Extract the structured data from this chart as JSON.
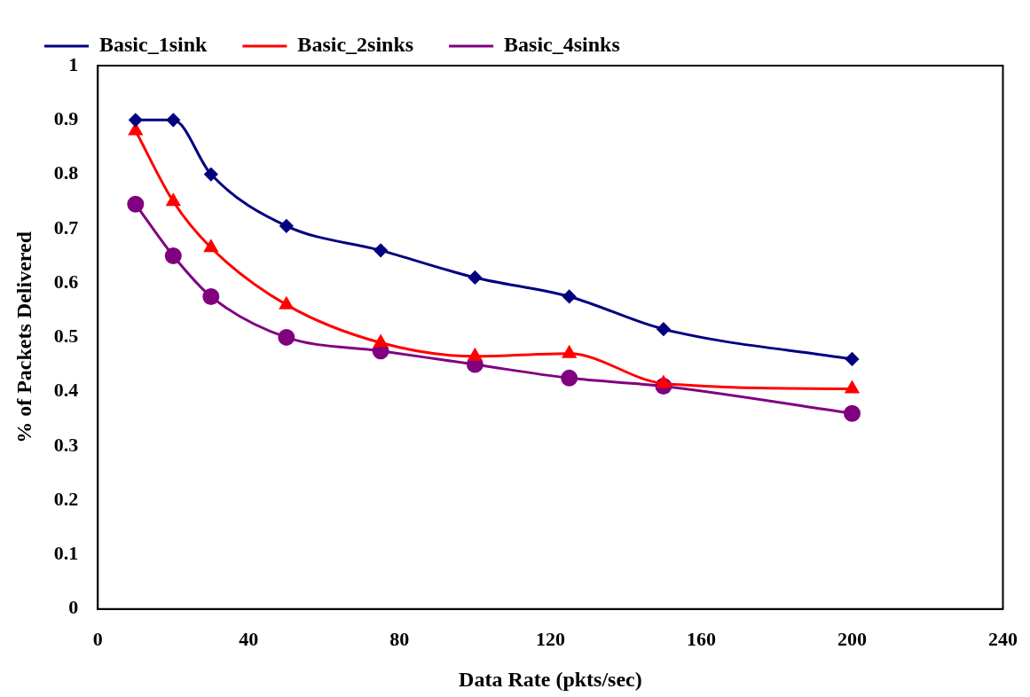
{
  "chart_data": {
    "type": "line",
    "xlabel": "Data Rate (pkts/sec)",
    "ylabel": "% of Packets Delivered",
    "x": [
      10,
      20,
      30,
      50,
      75,
      100,
      125,
      150,
      200
    ],
    "series": [
      {
        "name": "Basic_1sink",
        "color": "#000080",
        "marker": "diamond",
        "values": [
          0.9,
          0.9,
          0.8,
          0.705,
          0.66,
          0.61,
          0.575,
          0.515,
          0.46
        ]
      },
      {
        "name": "Basic_2sinks",
        "color": "#ff0000",
        "marker": "triangle",
        "values": [
          0.88,
          0.75,
          0.665,
          0.56,
          0.49,
          0.465,
          0.47,
          0.415,
          0.405
        ]
      },
      {
        "name": "Basic_4sinks",
        "color": "#800080",
        "marker": "circle",
        "values": [
          0.745,
          0.65,
          0.575,
          0.5,
          0.475,
          0.45,
          0.425,
          0.41,
          0.36
        ]
      }
    ],
    "xlim": [
      0,
      240
    ],
    "xticks": [
      0,
      40,
      80,
      120,
      160,
      200,
      240
    ],
    "ylim": [
      0,
      1
    ],
    "yticks": [
      0,
      0.1,
      0.2,
      0.3,
      0.4,
      0.5,
      0.6,
      0.7,
      0.8,
      0.9,
      1
    ],
    "grid": false,
    "legend": "top",
    "line_style": "solid"
  }
}
